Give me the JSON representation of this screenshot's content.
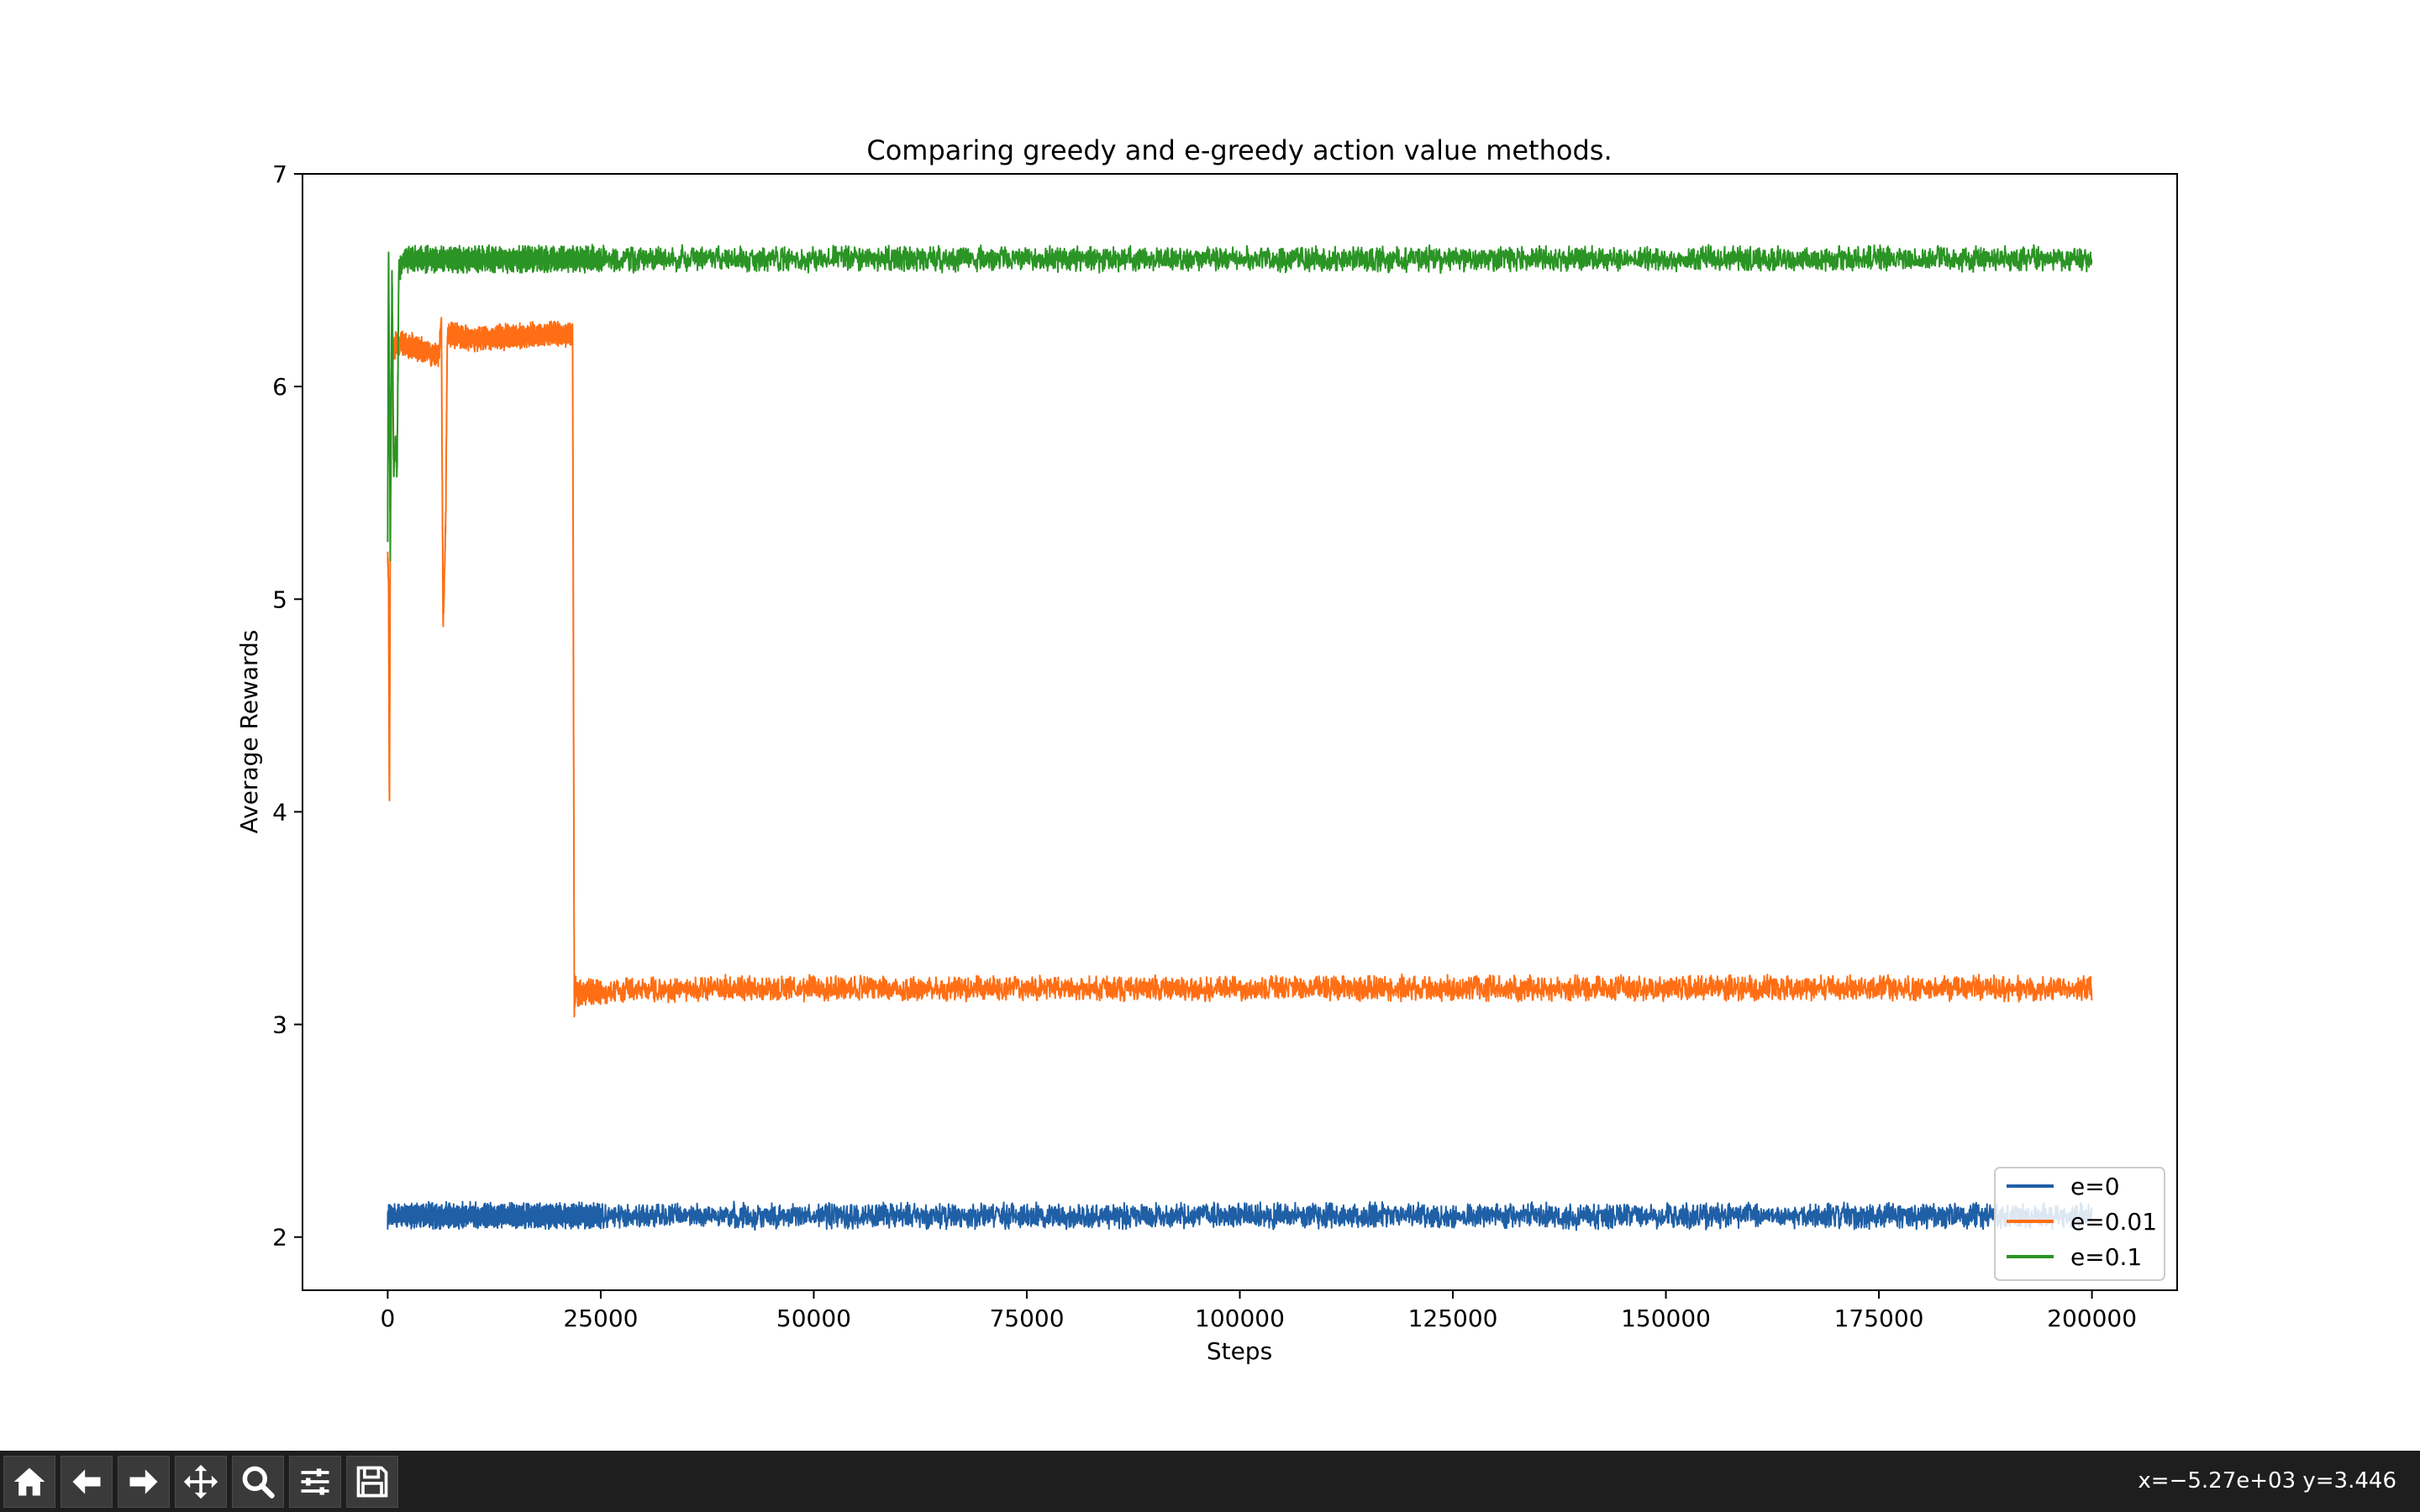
{
  "chart_data": {
    "type": "line",
    "title": "Comparing greedy and e-greedy action value methods.",
    "xlabel": "Steps",
    "ylabel": "Average Rewards",
    "xlim": [
      -10000,
      210000
    ],
    "ylim": [
      1.75,
      7.0
    ],
    "xticks": [
      0,
      25000,
      50000,
      75000,
      100000,
      125000,
      150000,
      175000,
      200000
    ],
    "yticks": [
      2,
      3,
      4,
      5,
      6,
      7
    ],
    "legend_position": "lower-right",
    "grid": false,
    "series": [
      {
        "name": "e=0",
        "color": "#1f5fa6",
        "x": [
          0,
          40000,
          80000,
          120000,
          160000,
          200000
        ],
        "y": [
          2.1,
          2.1,
          2.1,
          2.1,
          2.1,
          2.1
        ],
        "noise": 0.045
      },
      {
        "name": "e=0.01",
        "color": "#ff6e14",
        "x": [
          0,
          100,
          200,
          300,
          500,
          1000,
          2000,
          6000,
          6300,
          6500,
          6800,
          7000,
          10000,
          20000,
          21700,
          21900,
          22100,
          22300,
          40000,
          80000,
          120000,
          160000,
          200000
        ],
        "y": [
          5.2,
          5.1,
          3.95,
          5.3,
          6.15,
          6.2,
          6.2,
          6.15,
          6.3,
          4.85,
          5.35,
          6.25,
          6.22,
          6.25,
          6.25,
          3.05,
          3.2,
          3.15,
          3.17,
          3.17,
          3.17,
          3.17,
          3.17
        ],
        "noise": 0.045
      },
      {
        "name": "e=0.1",
        "color": "#2a9424",
        "x": [
          0,
          100,
          300,
          500,
          700,
          900,
          1100,
          1300,
          2000,
          40000,
          80000,
          120000,
          160000,
          200000
        ],
        "y": [
          5.3,
          6.7,
          5.2,
          6.6,
          5.6,
          5.75,
          5.6,
          6.55,
          6.6,
          6.6,
          6.6,
          6.6,
          6.6,
          6.6
        ],
        "noise": 0.045
      }
    ]
  },
  "toolbar": {
    "buttons": [
      {
        "icon": "home-icon",
        "name": "home-button"
      },
      {
        "icon": "arrow-left-icon",
        "name": "back-button"
      },
      {
        "icon": "arrow-right-icon",
        "name": "forward-button"
      },
      {
        "icon": "move-icon",
        "name": "pan-button"
      },
      {
        "icon": "magnifier-icon",
        "name": "zoom-button"
      },
      {
        "icon": "sliders-icon",
        "name": "configure-subplots-button"
      },
      {
        "icon": "floppy-disk-icon",
        "name": "save-button"
      }
    ],
    "coordinates": "x=−5.27e+03 y=3.446"
  }
}
